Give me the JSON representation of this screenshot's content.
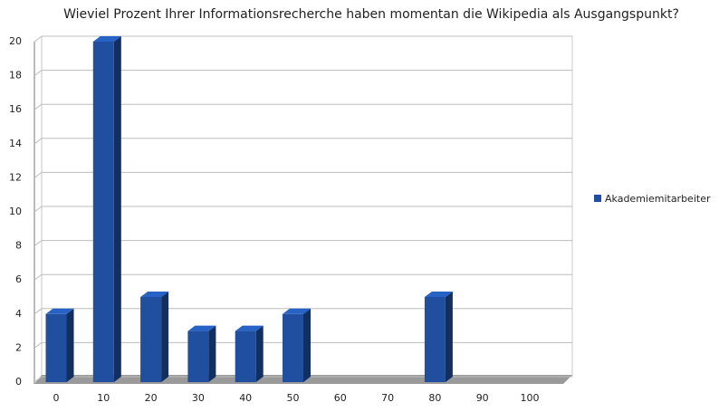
{
  "chart_data": {
    "type": "bar3d",
    "title": "Wieviel Prozent Ihrer Informationsrecherche haben momentan die Wikipedia als Ausgangspunkt?",
    "categories": [
      "0",
      "10",
      "20",
      "30",
      "40",
      "50",
      "60",
      "70",
      "80",
      "90",
      "100"
    ],
    "series": [
      {
        "name": "Akademiemitarbeiter",
        "color": "#1f4f9e",
        "values": [
          4,
          20,
          5,
          3,
          3,
          4,
          0,
          0,
          5,
          0,
          0
        ]
      }
    ],
    "ylim": [
      0,
      20
    ],
    "yticks": [
      0,
      2,
      4,
      6,
      8,
      10,
      12,
      14,
      16,
      18,
      20
    ],
    "grid": true,
    "legend": "right"
  }
}
